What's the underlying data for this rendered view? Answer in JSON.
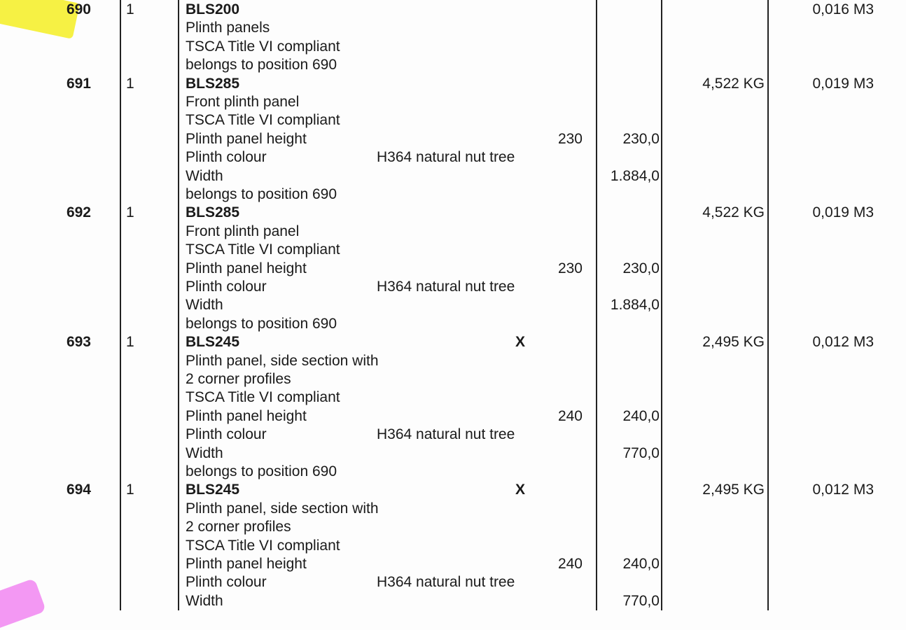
{
  "highlight_colors": {
    "position_690": "#f6f03a",
    "corner_mark": "#f07ef0"
  },
  "lines": [
    {
      "pos": "690",
      "qty": "1",
      "desc": "BLS200",
      "bold": true,
      "volume": "0,016 M3"
    },
    {
      "desc": "Plinth panels"
    },
    {
      "desc": "TSCA Title VI compliant"
    },
    {
      "desc": "belongs to position 690"
    },
    {
      "pos": "691",
      "qty": "1",
      "desc": "BLS285",
      "bold": true,
      "weight": "4,522 KG",
      "volume": "0,019 M3"
    },
    {
      "desc": "Front plinth panel"
    },
    {
      "desc": "TSCA Title VI compliant"
    },
    {
      "desc": "Plinth panel height",
      "v1": "230",
      "v2": "230,0"
    },
    {
      "desc": "Plinth colour",
      "opt": "H364 natural nut tree"
    },
    {
      "desc": "Width",
      "v2": "1.884,0"
    },
    {
      "desc": "belongs to position 690"
    },
    {
      "pos": "692",
      "qty": "1",
      "desc": "BLS285",
      "bold": true,
      "weight": "4,522 KG",
      "volume": "0,019 M3"
    },
    {
      "desc": "Front plinth panel"
    },
    {
      "desc": "TSCA Title VI compliant"
    },
    {
      "desc": "Plinth panel height",
      "v1": "230",
      "v2": "230,0"
    },
    {
      "desc": "Plinth colour",
      "opt": "H364 natural nut tree"
    },
    {
      "desc": "Width",
      "v2": "1.884,0"
    },
    {
      "desc": "belongs to position 690"
    },
    {
      "pos": "693",
      "qty": "1",
      "desc": "BLS245",
      "bold": true,
      "x": "X",
      "weight": "2,495 KG",
      "volume": "0,012 M3"
    },
    {
      "desc": "Plinth panel, side section with"
    },
    {
      "desc": "2 corner profiles"
    },
    {
      "desc": "TSCA Title VI compliant"
    },
    {
      "desc": "Plinth panel height",
      "v1": "240",
      "v2": "240,0"
    },
    {
      "desc": "Plinth colour",
      "opt": "H364 natural nut tree"
    },
    {
      "desc": "Width",
      "v2": "770,0"
    },
    {
      "desc": "belongs to position 690"
    },
    {
      "pos": "694",
      "qty": "1",
      "desc": "BLS245",
      "bold": true,
      "x": "X",
      "weight": "2,495 KG",
      "volume": "0,012 M3"
    },
    {
      "desc": "Plinth panel, side section with"
    },
    {
      "desc": "2 corner profiles"
    },
    {
      "desc": "TSCA Title VI compliant"
    },
    {
      "desc": "Plinth panel height",
      "v1": "240",
      "v2": "240,0"
    },
    {
      "desc": "Plinth colour",
      "opt": "H364 natural nut tree"
    },
    {
      "desc": "Width",
      "v2": "770,0"
    }
  ]
}
